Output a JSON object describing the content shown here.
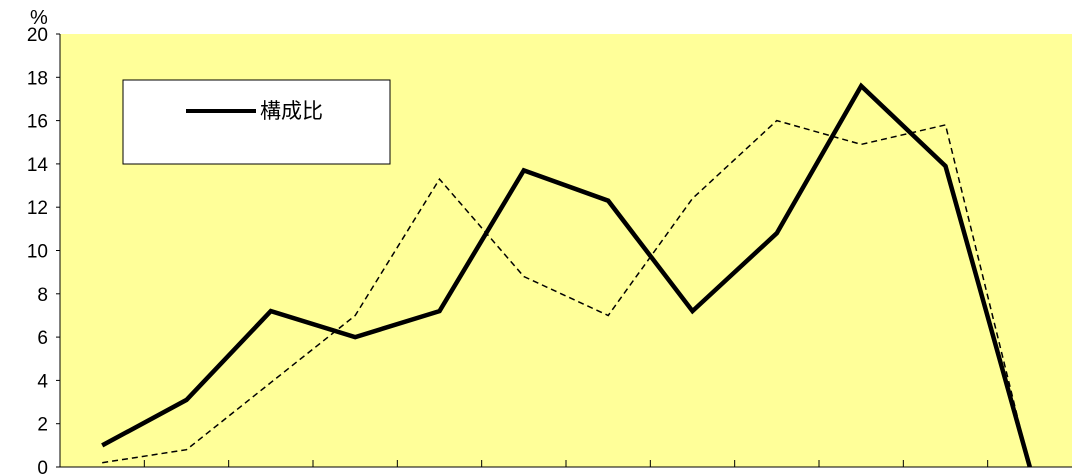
{
  "chart_data": {
    "type": "line",
    "y_unit": "%",
    "ylim": [
      0,
      20
    ],
    "yticks": [
      0,
      2,
      4,
      6,
      8,
      10,
      12,
      14,
      16,
      18,
      20
    ],
    "grid": false,
    "legend_position": "top-left",
    "background_color": "#FFFF99",
    "series": [
      {
        "name": "構成比",
        "style": "solid",
        "color": "#000000",
        "values": [
          1.0,
          3.1,
          7.2,
          6.0,
          7.2,
          13.7,
          12.3,
          7.2,
          10.8,
          17.6,
          13.9,
          0.0
        ]
      },
      {
        "style": "dashed",
        "color": "#000000",
        "values": [
          0.2,
          0.8,
          3.9,
          7.0,
          13.3,
          8.8,
          7.0,
          12.4,
          16.0,
          14.9,
          15.8,
          0.0
        ]
      }
    ]
  }
}
